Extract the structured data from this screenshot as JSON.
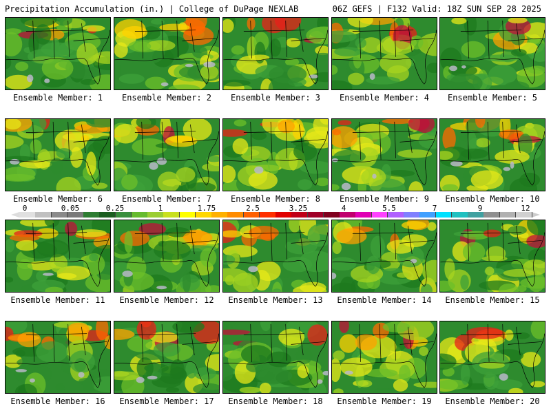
{
  "header": {
    "title_left": "Precipitation Accumulation (in.) | College of DuPage NEXLAB",
    "title_right": "06Z GEFS | F132 Valid: 18Z SUN SEP 28 2025"
  },
  "colorbar": {
    "tick_labels": [
      "0",
      "0.05",
      "0.25",
      "1",
      "1.75",
      "2.5",
      "3.25",
      "4",
      "5.5",
      "7",
      "9",
      "12"
    ],
    "colors": [
      "#e0e0e0",
      "#c0c0c0",
      "#8a8a8a",
      "#7a7a7a",
      "#2e7d32",
      "#1b5e20",
      "#388e3c",
      "#66bb2e",
      "#9acd32",
      "#c8e01e",
      "#ffff00",
      "#ffd700",
      "#ffb000",
      "#ff8c00",
      "#ff6000",
      "#ff3000",
      "#e00000",
      "#c00018",
      "#a00028",
      "#80001e",
      "#c0006e",
      "#e000b4",
      "#ff40ff",
      "#b060ff",
      "#8080ff",
      "#40a0ff",
      "#00e0ff",
      "#20c0c0",
      "#40a0a0",
      "#909090",
      "#b0b0b0",
      "#d0d0d0"
    ]
  },
  "members": [
    {
      "label": "Ensemble Member: 1"
    },
    {
      "label": "Ensemble Member: 2"
    },
    {
      "label": "Ensemble Member: 3"
    },
    {
      "label": "Ensemble Member: 4"
    },
    {
      "label": "Ensemble Member: 5"
    },
    {
      "label": "Ensemble Member: 6"
    },
    {
      "label": "Ensemble Member: 7"
    },
    {
      "label": "Ensemble Member: 8"
    },
    {
      "label": "Ensemble Member: 9"
    },
    {
      "label": "Ensemble Member: 10"
    },
    {
      "label": "Ensemble Member: 11"
    },
    {
      "label": "Ensemble Member: 12"
    },
    {
      "label": "Ensemble Member: 13"
    },
    {
      "label": "Ensemble Member: 14"
    },
    {
      "label": "Ensemble Member: 15"
    },
    {
      "label": "Ensemble Member: 16"
    },
    {
      "label": "Ensemble Member: 17"
    },
    {
      "label": "Ensemble Member: 18"
    },
    {
      "label": "Ensemble Member: 19"
    },
    {
      "label": "Ensemble Member: 20"
    }
  ]
}
